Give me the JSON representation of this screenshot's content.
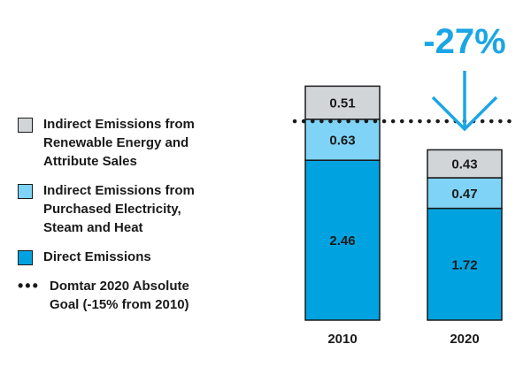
{
  "chart_data": {
    "type": "bar",
    "stacked": true,
    "categories": [
      "2010",
      "2020"
    ],
    "series": [
      {
        "name": "Direct Emissions",
        "values": [
          2.46,
          1.72
        ],
        "color": "#00a3e0"
      },
      {
        "name": "Indirect Emissions from Purchased Electricity, Steam and Heat",
        "values": [
          0.63,
          0.47
        ],
        "color": "#7fd3f7"
      },
      {
        "name": "Indirect Emissions from Renewable Energy and Attribute Sales",
        "values": [
          0.51,
          0.43
        ],
        "color": "#d2d5d8"
      }
    ],
    "reference_line": {
      "name": "Domtar 2020 Absolute Goal (-15% from 2010)",
      "value": 3.06,
      "style": "dotted"
    },
    "annotation": {
      "text": "-27%",
      "icon": "arrow-down-icon",
      "color": "#1aa6e6"
    },
    "ylim": [
      0,
      3.6
    ],
    "grid": false,
    "legend_position": "left"
  },
  "legend": [
    {
      "key": "renewable",
      "swatch": "#d2d5d8",
      "text": "Indirect Emissions from\nRenewable Energy and\nAttribute Sales"
    },
    {
      "key": "purchased",
      "swatch": "#7fd3f7",
      "text": "Indirect Emissions from\nPurchased Electricity,\nSteam and Heat"
    },
    {
      "key": "direct",
      "swatch": "#00a3e0",
      "text": "Direct Emissions"
    },
    {
      "key": "goal",
      "swatch": "dots",
      "text": "Domtar 2020 Absolute\nGoal (-15% from 2010)"
    }
  ]
}
